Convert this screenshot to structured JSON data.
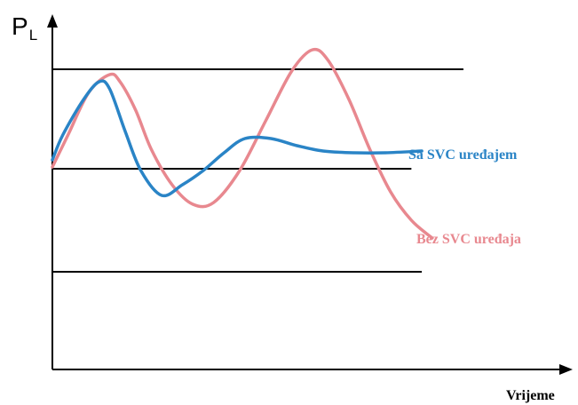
{
  "chart_data": {
    "type": "line",
    "ylabel_main": "P",
    "ylabel_sub": "L",
    "xlabel": "Vrijeme",
    "grid": false,
    "ylim": [
      0,
      1
    ],
    "xlim": [
      0,
      1
    ],
    "reference_lines": [
      {
        "y": 0.845,
        "x_end": 0.79
      },
      {
        "y": 0.565,
        "x_end": 0.69
      },
      {
        "y": 0.275,
        "x_end": 0.71
      }
    ],
    "series": [
      {
        "name": "Sa SVC uređajem",
        "color": "#2a84c6",
        "x": [
          0.0,
          0.02,
          0.06,
          0.09,
          0.11,
          0.14,
          0.17,
          0.21,
          0.25,
          0.29,
          0.33,
          0.37,
          0.42,
          0.47,
          0.52,
          0.58,
          0.64,
          0.71
        ],
        "y": [
          0.59,
          0.66,
          0.76,
          0.81,
          0.79,
          0.67,
          0.56,
          0.49,
          0.52,
          0.56,
          0.61,
          0.65,
          0.65,
          0.63,
          0.615,
          0.61,
          0.61,
          0.615
        ]
      },
      {
        "name": "Bez SVC uređaja",
        "color": "#e8888f",
        "x": [
          0.0,
          0.03,
          0.07,
          0.11,
          0.13,
          0.16,
          0.19,
          0.23,
          0.27,
          0.31,
          0.36,
          0.41,
          0.46,
          0.5,
          0.53,
          0.57,
          0.61,
          0.65,
          0.69,
          0.73
        ],
        "y": [
          0.57,
          0.66,
          0.78,
          0.83,
          0.81,
          0.73,
          0.62,
          0.52,
          0.465,
          0.47,
          0.56,
          0.7,
          0.84,
          0.9,
          0.87,
          0.76,
          0.62,
          0.5,
          0.42,
          0.37
        ]
      }
    ]
  }
}
